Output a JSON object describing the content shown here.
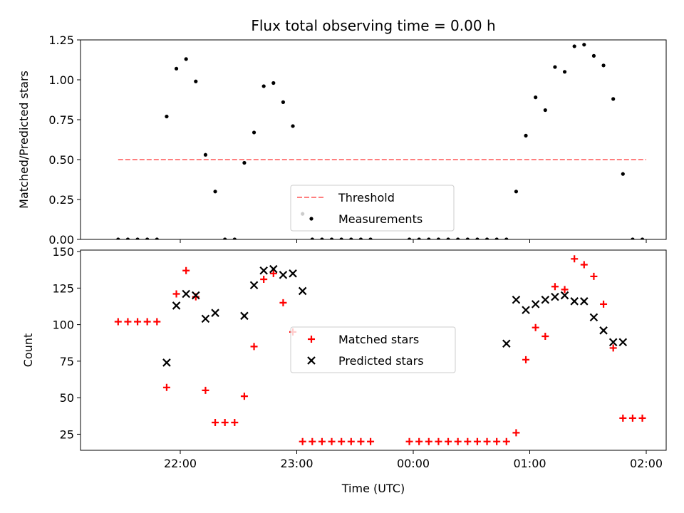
{
  "title": "Flux total observing time = 0.00 h",
  "chart_data": [
    {
      "type": "scatter",
      "ylabel": "Matched/Predicted stars",
      "xlabel": "",
      "ylim": [
        0.0,
        1.25
      ],
      "y_ticks": [
        "0.00",
        "0.25",
        "0.50",
        "0.75",
        "1.00",
        "1.25"
      ],
      "x_ticks": [
        "22:00",
        "23:00",
        "00:00",
        "01:00",
        "02:00"
      ],
      "x_unit": "time (UTC)",
      "grid": false,
      "legend_placement": "lower center",
      "series": [
        {
          "name": "Threshold",
          "kind": "line",
          "style": "dashed",
          "color": "#ff7f7f",
          "x": [
            "21:28",
            "02:00"
          ],
          "y": [
            0.5,
            0.5
          ]
        },
        {
          "name": "Measurements",
          "kind": "scatter",
          "marker": "dot",
          "color": "#000000",
          "x": [
            "21:28",
            "21:33",
            "21:38",
            "21:43",
            "21:48",
            "21:53",
            "21:58",
            "22:03",
            "22:08",
            "22:13",
            "22:18",
            "22:23",
            "22:28",
            "22:33",
            "22:38",
            "22:43",
            "22:48",
            "22:53",
            "22:58",
            "23:03",
            "23:08",
            "23:13",
            "23:18",
            "23:23",
            "23:28",
            "23:33",
            "23:38",
            "23:58",
            "24:03",
            "24:08",
            "24:13",
            "24:18",
            "24:23",
            "24:28",
            "24:33",
            "24:38",
            "24:43",
            "24:48",
            "24:53",
            "24:58",
            "25:03",
            "25:08",
            "25:13",
            "25:18",
            "25:23",
            "25:28",
            "25:33",
            "25:38",
            "25:43",
            "25:48",
            "25:53",
            "25:58"
          ],
          "y": [
            0.0,
            0.0,
            0.0,
            0.0,
            0.0,
            0.77,
            1.07,
            1.13,
            0.99,
            0.53,
            0.3,
            0.0,
            0.0,
            0.48,
            0.67,
            0.96,
            0.98,
            0.86,
            0.71,
            0.16,
            0.0,
            0.0,
            0.0,
            0.0,
            0.0,
            0.0,
            0.0,
            0.0,
            0.0,
            0.0,
            0.0,
            0.0,
            0.0,
            0.0,
            0.0,
            0.0,
            0.0,
            0.0,
            0.3,
            0.65,
            0.89,
            0.81,
            1.08,
            1.05,
            1.21,
            1.22,
            1.15,
            1.09,
            0.88,
            0.41,
            0.0,
            0.0
          ]
        }
      ]
    },
    {
      "type": "scatter",
      "ylabel": "Count",
      "xlabel": "Time (UTC)",
      "ylim": [
        14,
        151
      ],
      "y_ticks": [
        "25",
        "50",
        "75",
        "100",
        "125",
        "150"
      ],
      "x_ticks": [
        "22:00",
        "23:00",
        "00:00",
        "01:00",
        "02:00"
      ],
      "grid": false,
      "legend_placement": "center",
      "series": [
        {
          "name": "Matched stars",
          "marker": "plus",
          "color": "#ff0000",
          "x": [
            "21:28",
            "21:33",
            "21:38",
            "21:43",
            "21:48",
            "21:53",
            "21:58",
            "22:03",
            "22:08",
            "22:13",
            "22:18",
            "22:23",
            "22:28",
            "22:33",
            "22:38",
            "22:43",
            "22:48",
            "22:53",
            "22:58",
            "23:03",
            "23:08",
            "23:13",
            "23:18",
            "23:23",
            "23:28",
            "23:33",
            "23:38",
            "23:58",
            "24:03",
            "24:08",
            "24:13",
            "24:18",
            "24:23",
            "24:28",
            "24:33",
            "24:38",
            "24:43",
            "24:48",
            "24:53",
            "24:58",
            "25:03",
            "25:08",
            "25:13",
            "25:18",
            "25:23",
            "25:28",
            "25:33",
            "25:38",
            "25:43",
            "25:48",
            "25:53",
            "25:58"
          ],
          "y": [
            102,
            102,
            102,
            102,
            102,
            57,
            121,
            137,
            119,
            55,
            33,
            33,
            33,
            51,
            85,
            131,
            135,
            115,
            95,
            20,
            20,
            20,
            20,
            20,
            20,
            20,
            20,
            20,
            20,
            20,
            20,
            20,
            20,
            20,
            20,
            20,
            20,
            20,
            26,
            76,
            98,
            92,
            126,
            124,
            145,
            141,
            133,
            114,
            84,
            36,
            36,
            36
          ]
        },
        {
          "name": "Predicted stars",
          "marker": "x",
          "color": "#000000",
          "x": [
            "21:53",
            "21:58",
            "22:03",
            "22:08",
            "22:13",
            "22:18",
            "22:33",
            "22:38",
            "22:43",
            "22:48",
            "22:53",
            "22:58",
            "23:03",
            "24:48",
            "24:53",
            "24:58",
            "25:03",
            "25:08",
            "25:13",
            "25:18",
            "25:23",
            "25:28",
            "25:33",
            "25:38",
            "25:43",
            "25:48"
          ],
          "y": [
            74,
            113,
            121,
            120,
            104,
            108,
            106,
            127,
            137,
            138,
            134,
            135,
            123,
            87,
            117,
            110,
            114,
            117,
            119,
            120,
            116,
            116,
            105,
            96,
            88,
            88
          ]
        }
      ]
    }
  ]
}
